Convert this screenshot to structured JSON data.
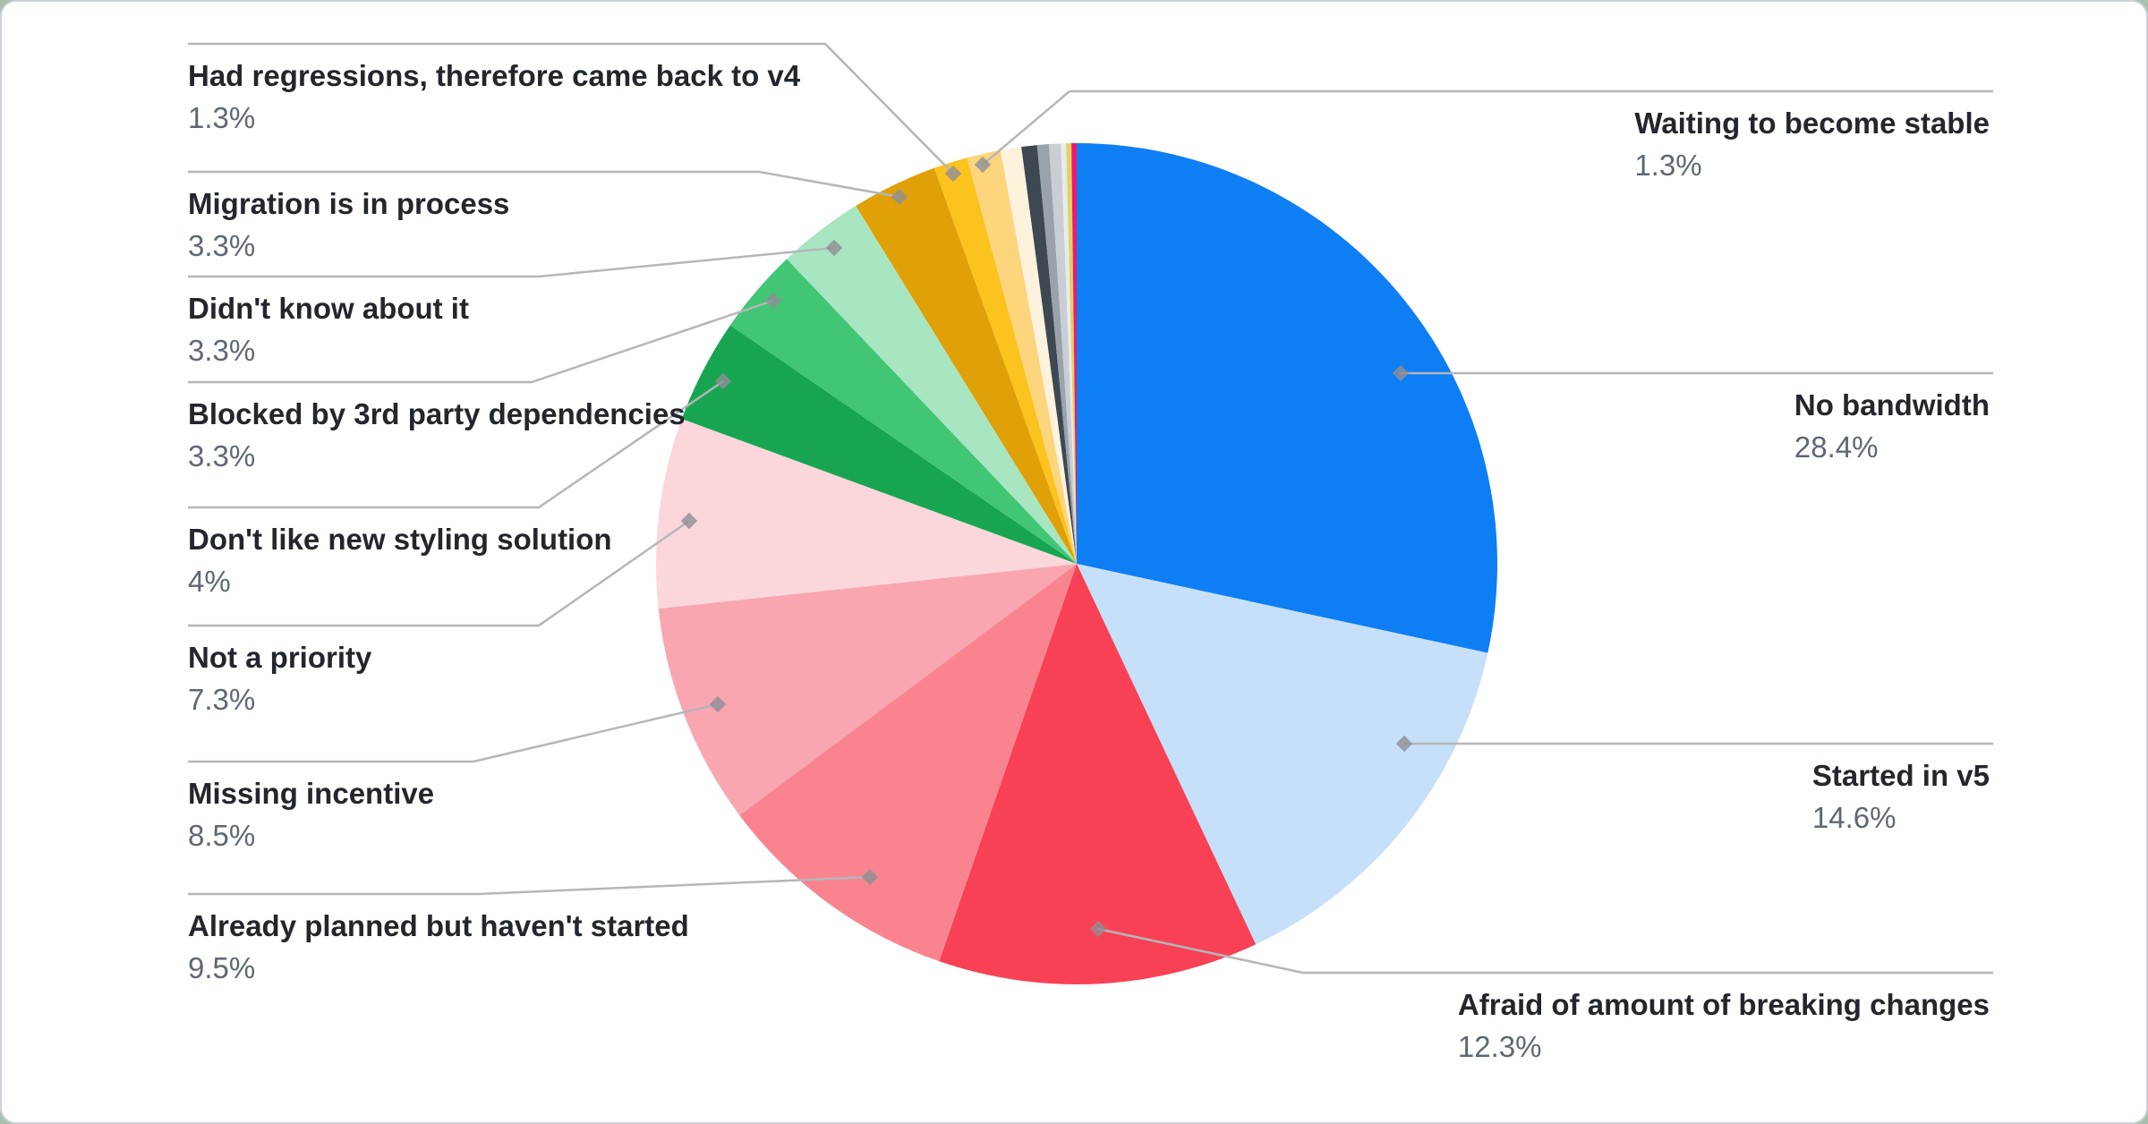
{
  "card": {
    "background": "#ffffff",
    "border_color": "#ccd3d9",
    "page_background": "#a9bfae"
  },
  "label_style": {
    "title_color": "#23272d",
    "pct_color": "#5d6874",
    "line_color": "#b4b6b8",
    "marker_color": "#8e8e93"
  },
  "chart_data": {
    "type": "pie",
    "title": "",
    "legend_position": "none",
    "start_angle_deg": 0,
    "direction": "clockwise",
    "series": [
      {
        "id": "no_bandwidth",
        "label": "No bandwidth",
        "pct": "28.4%",
        "value": 28.4,
        "color": "#0e7ef5",
        "side": "right"
      },
      {
        "id": "started_in_v5",
        "label": "Started in v5",
        "pct": "14.6%",
        "value": 14.6,
        "color": "#c7e0f9",
        "side": "right"
      },
      {
        "id": "afraid_breaking",
        "label": "Afraid of amount of breaking changes",
        "pct": "12.3%",
        "value": 12.3,
        "color": "#f94155",
        "side": "right"
      },
      {
        "id": "already_planned",
        "label": "Already planned but haven't started",
        "pct": "9.5%",
        "value": 9.5,
        "color": "#f98490",
        "side": "left"
      },
      {
        "id": "missing_incentive",
        "label": "Missing incentive",
        "pct": "8.5%",
        "value": 8.5,
        "color": "#f9a6b0",
        "side": "left"
      },
      {
        "id": "not_priority",
        "label": "Not a priority",
        "pct": "7.3%",
        "value": 7.3,
        "color": "#fbd6db",
        "side": "left"
      },
      {
        "id": "dont_like_styling",
        "label": "Don't like new styling solution",
        "pct": "4%",
        "value": 4.0,
        "color": "#18a551",
        "side": "left"
      },
      {
        "id": "blocked_3rd_party",
        "label": "Blocked by 3rd party dependencies",
        "pct": "3.3%",
        "value": 3.3,
        "color": "#41c676",
        "side": "left"
      },
      {
        "id": "didnt_know",
        "label": "Didn't know about it",
        "pct": "3.3%",
        "value": 3.3,
        "color": "#a8e6c1",
        "side": "left"
      },
      {
        "id": "migration_in_process",
        "label": "Migration is in process",
        "pct": "3.3%",
        "value": 3.3,
        "color": "#e0a008",
        "side": "left"
      },
      {
        "id": "had_regressions",
        "label": "Had regressions, therefore came back to v4",
        "pct": "1.3%",
        "value": 1.3,
        "color": "#fcc21e",
        "side": "left"
      },
      {
        "id": "waiting_stable",
        "label": "Waiting to become stable",
        "pct": "1.3%",
        "value": 1.3,
        "color": "#fdd57c",
        "side": "right"
      },
      {
        "id": "sliver_cream",
        "label": null,
        "pct": null,
        "value": 0.8,
        "color": "#fdf2dc",
        "side": null
      },
      {
        "id": "sliver_slate",
        "label": null,
        "pct": null,
        "value": 0.6,
        "color": "#3e4852",
        "side": null
      },
      {
        "id": "sliver_gray",
        "label": null,
        "pct": null,
        "value": 0.45,
        "color": "#9aa2ac",
        "side": null
      },
      {
        "id": "sliver_lightgray",
        "label": null,
        "pct": null,
        "value": 0.45,
        "color": "#c9ced4",
        "side": null
      },
      {
        "id": "sliver_palegray",
        "label": null,
        "pct": null,
        "value": 0.2,
        "color": "#e8eaed",
        "side": null
      },
      {
        "id": "sliver_khaki",
        "label": null,
        "pct": null,
        "value": 0.2,
        "color": "#ddd464",
        "side": null
      },
      {
        "id": "sliver_magenta",
        "label": null,
        "pct": null,
        "value": 0.2,
        "color": "#f0186c",
        "side": null
      }
    ]
  }
}
